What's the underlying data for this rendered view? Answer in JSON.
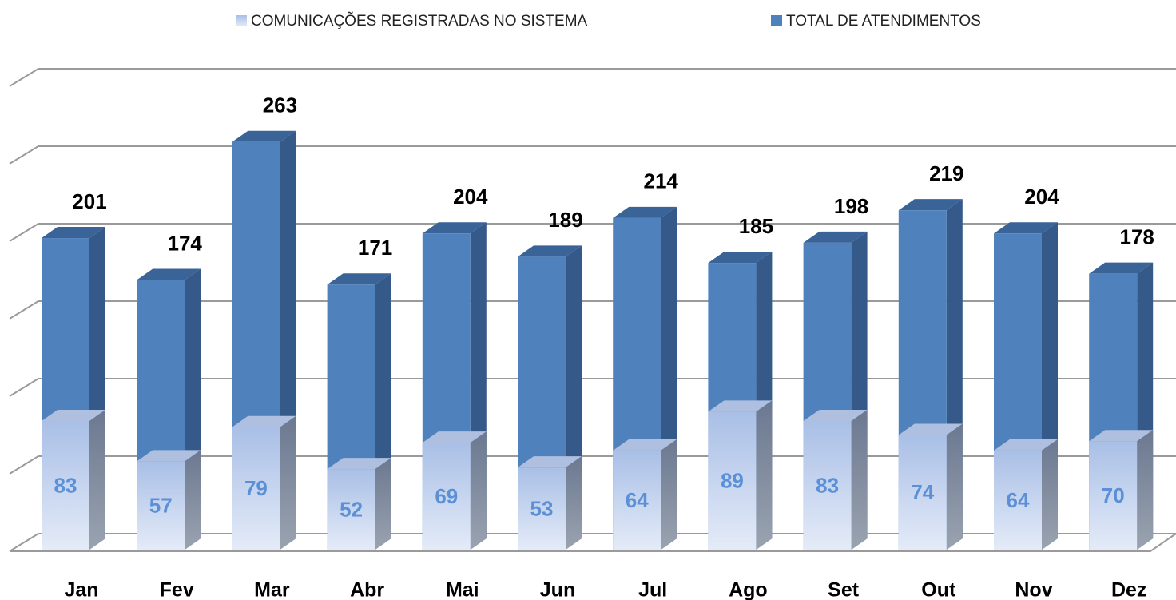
{
  "chart_data": {
    "type": "bar",
    "categories": [
      "Jan",
      "Fev",
      "Mar",
      "Abr",
      "Mai",
      "Jun",
      "Jul",
      "Ago",
      "Set",
      "Out",
      "Nov",
      "Dez"
    ],
    "series": [
      {
        "name": "COMUNICAÇÕES REGISTRADAS NO SISTEMA",
        "color": "#c5d4ef",
        "values": [
          83,
          57,
          79,
          52,
          69,
          53,
          64,
          89,
          83,
          74,
          64,
          70
        ]
      },
      {
        "name": "TOTAL DE ATENDIMENTOS",
        "color": "#4f81bd",
        "values": [
          201,
          174,
          263,
          171,
          204,
          189,
          214,
          185,
          198,
          219,
          204,
          178
        ]
      }
    ],
    "ylim": [
      0,
      300
    ],
    "yticks": [
      0,
      50,
      100,
      150,
      200,
      250,
      300
    ],
    "grid": true
  }
}
